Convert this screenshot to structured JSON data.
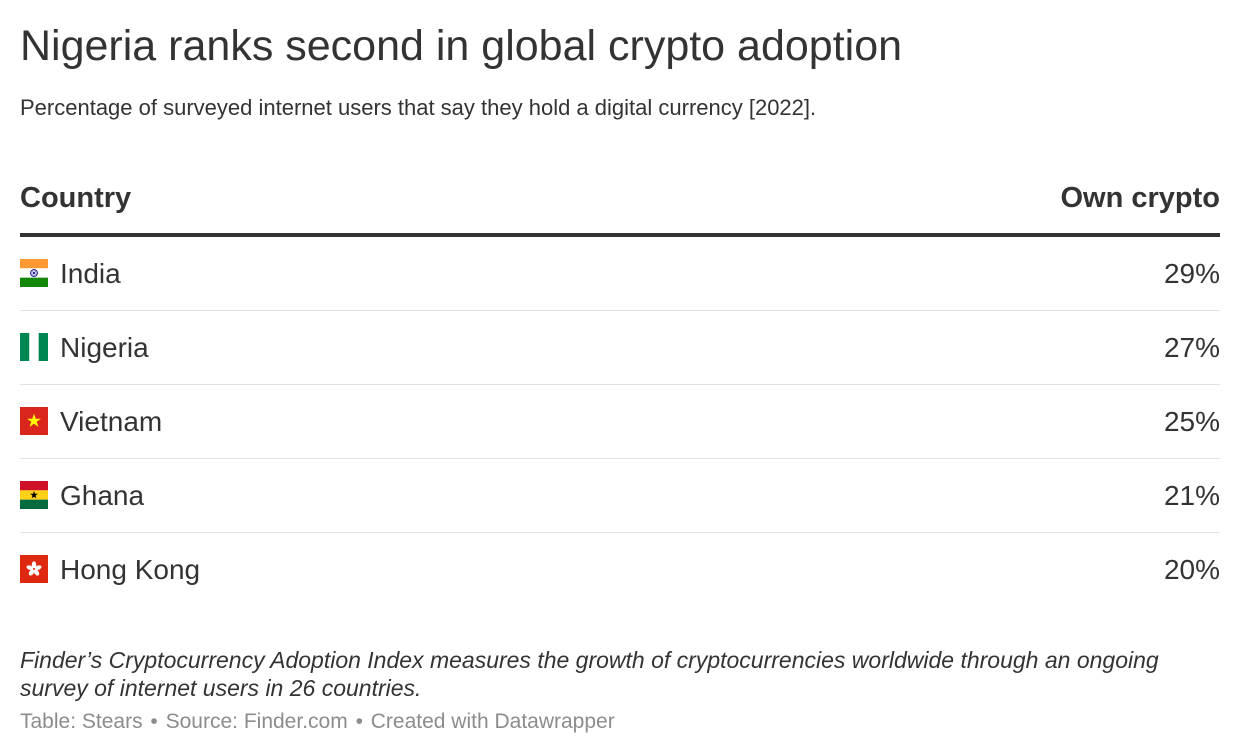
{
  "title": "Nigeria ranks second in global crypto adoption",
  "subtitle": "Percentage of surveyed internet users that say they hold a digital currency [2022].",
  "table": {
    "columns": [
      "Country",
      "Own crypto"
    ],
    "rows": [
      {
        "country": "India",
        "value": "29%",
        "flag": "india-flag-icon"
      },
      {
        "country": "Nigeria",
        "value": "27%",
        "flag": "nigeria-flag-icon"
      },
      {
        "country": "Vietnam",
        "value": "25%",
        "flag": "vietnam-flag-icon"
      },
      {
        "country": "Ghana",
        "value": "21%",
        "flag": "ghana-flag-icon"
      },
      {
        "country": "Hong Kong",
        "value": "20%",
        "flag": "hong-kong-flag-icon"
      }
    ]
  },
  "notes": "Finder’s Cryptocurrency Adoption Index measures the growth of cryptocurrencies worldwide through an ongoing survey of internet users in 26 countries.",
  "footer": {
    "table_credit": "Table: Stears",
    "source": "Source: Finder.com",
    "created_with": "Created with Datawrapper",
    "separator": "•"
  },
  "colors": {
    "text": "#333333",
    "rule": "#333333",
    "row_divider": "#e2e2e2",
    "footer_text": "#8c8c8c"
  },
  "chart_data": {
    "type": "table",
    "title": "Nigeria ranks second in global crypto adoption",
    "subtitle": "Percentage of surveyed internet users that say they hold a digital currency [2022].",
    "columns": [
      "Country",
      "Own crypto"
    ],
    "categories": [
      "India",
      "Nigeria",
      "Vietnam",
      "Ghana",
      "Hong Kong"
    ],
    "series": [
      {
        "name": "Own crypto",
        "values": [
          29,
          27,
          25,
          21,
          20
        ]
      }
    ]
  }
}
